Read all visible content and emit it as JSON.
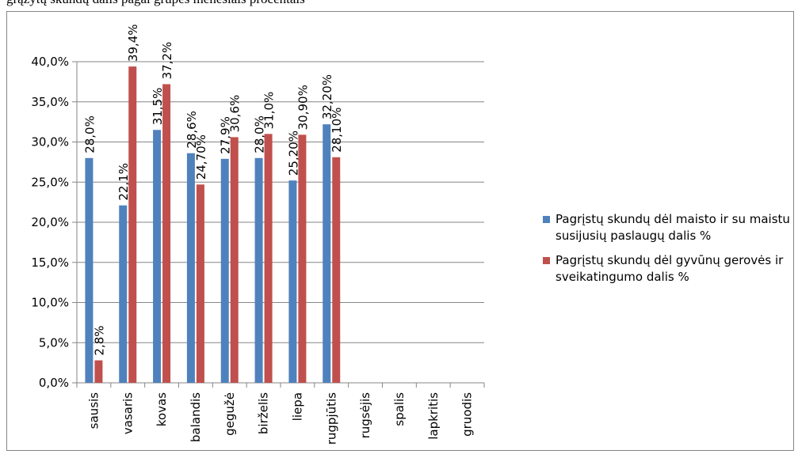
{
  "header": {
    "text": "grąžytų skundų dalis pagal grupes mėnesiais procentais"
  },
  "colors": {
    "series1": "#4F81BD",
    "series2": "#C0504D",
    "grid": "#868686",
    "axis": "#868686"
  },
  "chart_data": {
    "type": "bar",
    "title": "",
    "xlabel": "",
    "ylabel": "",
    "ylim": [
      0,
      40
    ],
    "yticks": [
      "0,0%",
      "5,0%",
      "10,0%",
      "15,0%",
      "20,0%",
      "25,0%",
      "30,0%",
      "35,0%",
      "40,0%"
    ],
    "grid": true,
    "legend_position": "right",
    "categories": [
      "sausis",
      "vasaris",
      "kovas",
      "balandis",
      "gegužė",
      "birželis",
      "liepa",
      "rugpjūtis",
      "rugsėjis",
      "spalis",
      "lapkritis",
      "gruodis"
    ],
    "series": [
      {
        "name": "Pagrįstų skundų dėl maisto ir su maistu susijusių paslaugų dalis %",
        "values": [
          28.0,
          22.1,
          31.5,
          28.6,
          27.9,
          28.0,
          25.2,
          32.2,
          null,
          null,
          null,
          null
        ],
        "labels": [
          "28,0%",
          "22,1%",
          "31,5%",
          "28,6%",
          "27,9%",
          "28,0%",
          "25,20%",
          "32,20%",
          "",
          "",
          "",
          ""
        ]
      },
      {
        "name": "Pagrįstų skundų dėl gyvūnų gerovės ir sveikatingumo dalis %",
        "values": [
          2.8,
          39.4,
          37.2,
          24.7,
          30.6,
          31.0,
          30.9,
          28.1,
          null,
          null,
          null,
          null
        ],
        "labels": [
          "2,8%",
          "39,4%",
          "37,2%",
          "24,70%",
          "30,6%",
          "31,0%",
          "30,90%",
          "28,10%",
          "",
          "",
          "",
          ""
        ]
      }
    ]
  }
}
